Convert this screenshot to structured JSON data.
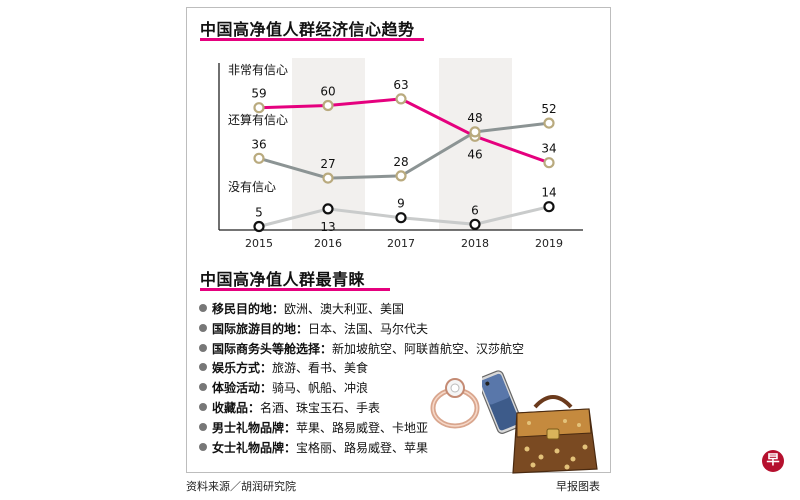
{
  "header": {
    "title": "中国高净值人群经济信心趋势"
  },
  "chart_data": {
    "type": "line",
    "title": "中国高净值人群经济信心趋势",
    "categories": [
      "2015",
      "2016",
      "2017",
      "2018",
      "2019"
    ],
    "series": [
      {
        "name": "非常有信心",
        "values": [
          59,
          60,
          63,
          46,
          34
        ],
        "color": "#e5007e"
      },
      {
        "name": "还算有信心",
        "values": [
          36,
          27,
          28,
          48,
          52
        ],
        "color": "#8c9494"
      },
      {
        "name": "没有信心",
        "values": [
          5,
          13,
          9,
          6,
          14
        ],
        "color": "#c9cbcb"
      }
    ],
    "colors": {
      "marker_gold": "#b9aa7e",
      "marker_black": "#111111",
      "band": "#f2f0ee"
    }
  },
  "preferences": {
    "title": "中国高净值人群最青睐",
    "items": [
      {
        "category": "移民目的地：",
        "value": "欧洲、澳大利亚、美国"
      },
      {
        "category": "国际旅游目的地：",
        "value": "日本、法国、马尔代夫"
      },
      {
        "category": "国际商务头等舱选择：",
        "value": "新加坡航空、阿联酋航空、汉莎航空"
      },
      {
        "category": "娱乐方式：",
        "value": "旅游、看书、美食"
      },
      {
        "category": "体验活动：",
        "value": "骑马、帆船、冲浪"
      },
      {
        "category": "收藏品：",
        "value": "名酒、珠宝玉石、手表"
      },
      {
        "category": "男士礼物品牌：",
        "value": "苹果、路易威登、卡地亚"
      },
      {
        "category": "女士礼物品牌：",
        "value": "宝格丽、路易威登、苹果"
      }
    ]
  },
  "footer": {
    "source": "资料来源／胡润研究院",
    "credit": "早报图表"
  },
  "logo": {
    "seal_text": "早"
  },
  "icons": [
    "ring-icon",
    "smartphone-icon",
    "handbag-icon",
    "bullet-icon",
    "seal-logo"
  ]
}
